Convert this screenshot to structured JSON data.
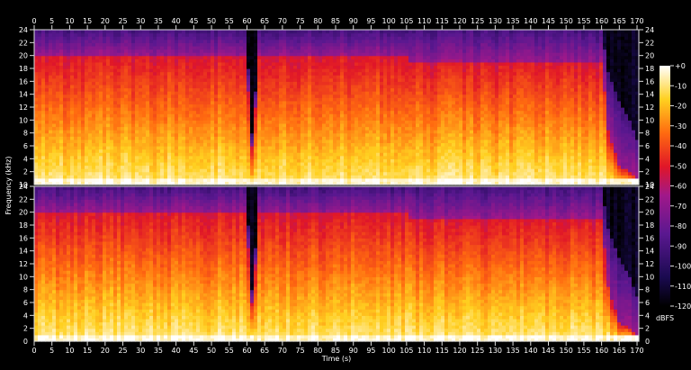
{
  "chart_data": {
    "type": "heatmap",
    "title": "",
    "xlabel": "Time (s)",
    "ylabel": "Frequency (kHz)",
    "x_ticks": [
      0,
      5,
      10,
      15,
      20,
      25,
      30,
      35,
      40,
      45,
      50,
      55,
      60,
      65,
      70,
      75,
      80,
      85,
      90,
      95,
      100,
      105,
      110,
      115,
      120,
      125,
      130,
      135,
      140,
      145,
      150,
      155,
      160,
      165,
      170
    ],
    "xlim": [
      0,
      170.5
    ],
    "channels": [
      {
        "y_ticks": [
          2,
          4,
          6,
          8,
          10,
          12,
          14,
          16,
          18,
          20,
          22,
          24
        ],
        "ylim": [
          0,
          24
        ],
        "bottom_label": "10"
      },
      {
        "y_ticks": [
          2,
          4,
          6,
          8,
          10,
          12,
          14,
          16,
          18,
          20,
          22,
          24
        ],
        "ylim": [
          0,
          24
        ],
        "bottom_label": "0"
      }
    ],
    "colorbar": {
      "label": "dBFS",
      "ticks": [
        "+0",
        "-10",
        "-20",
        "-30",
        "-40",
        "-50",
        "-60",
        "-70",
        "-80",
        "-90",
        "-100",
        "-110",
        "-120"
      ],
      "range": [
        -120,
        0
      ]
    },
    "content_envelope": {
      "time_s": [
        0,
        60,
        61,
        62,
        63,
        105,
        106,
        160,
        162,
        165,
        168,
        170.5
      ],
      "strong_content_top_khz": [
        20,
        20,
        6,
        6,
        20,
        20,
        19,
        19,
        8,
        3,
        2,
        0.5
      ],
      "weak_content_top_khz": [
        24,
        24,
        8,
        8,
        24,
        24,
        24,
        24,
        17,
        13,
        10,
        6
      ]
    }
  }
}
